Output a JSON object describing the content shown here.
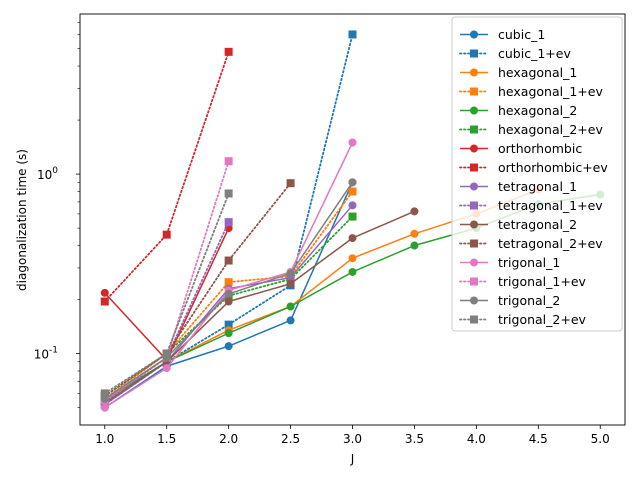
{
  "chart_data": {
    "type": "line",
    "title": "",
    "xlabel": "J",
    "ylabel": "diagonalization time (s)",
    "yscale": "log",
    "xlim": [
      0.8,
      5.2
    ],
    "ylim": [
      0.04,
      7.8
    ],
    "xticks": [
      1.0,
      1.5,
      2.0,
      2.5,
      3.0,
      3.5,
      4.0,
      4.5,
      5.0
    ],
    "xtick_labels": [
      "1.0",
      "1.5",
      "2.0",
      "2.5",
      "3.0",
      "3.5",
      "4.0",
      "4.5",
      "5.0"
    ],
    "yticks_major": [
      0.1,
      1
    ],
    "ytick_labels": [
      "10^-1",
      "10^0"
    ],
    "legend_position": "upper-right",
    "series": [
      {
        "name": "cubic_1",
        "color": "#1f77b4",
        "line": "solid",
        "marker": "circle",
        "x": [
          1.0,
          1.5,
          2.0,
          2.5,
          3.0
        ],
        "y": [
          0.05,
          0.085,
          0.11,
          0.153,
          0.9
        ]
      },
      {
        "name": "cubic_1+ev",
        "color": "#1f77b4",
        "line": "dotted",
        "marker": "square",
        "x": [
          1.0,
          1.5,
          2.0,
          2.5,
          3.0
        ],
        "y": [
          0.052,
          0.09,
          0.145,
          0.24,
          6.0
        ]
      },
      {
        "name": "hexagonal_1",
        "color": "#ff7f0e",
        "line": "solid",
        "marker": "circle",
        "x": [
          1.0,
          1.5,
          2.0,
          2.5,
          3.0,
          3.5,
          4.0,
          4.5
        ],
        "y": [
          0.055,
          0.09,
          0.135,
          0.183,
          0.34,
          0.465,
          0.6,
          0.82
        ]
      },
      {
        "name": "hexagonal_1+ev",
        "color": "#ff7f0e",
        "line": "dotted",
        "marker": "square",
        "x": [
          1.0,
          1.5,
          2.0,
          2.5,
          3.0
        ],
        "y": [
          0.056,
          0.1,
          0.25,
          0.27,
          0.8
        ]
      },
      {
        "name": "hexagonal_2",
        "color": "#2ca02c",
        "line": "solid",
        "marker": "circle",
        "x": [
          1.0,
          1.5,
          2.0,
          2.5,
          3.0,
          3.5,
          4.0,
          4.5,
          5.0
        ],
        "y": [
          0.055,
          0.09,
          0.13,
          0.183,
          0.285,
          0.4,
          0.5,
          0.68,
          0.77
        ]
      },
      {
        "name": "hexagonal_2+ev",
        "color": "#2ca02c",
        "line": "dotted",
        "marker": "square",
        "x": [
          1.0,
          1.5,
          2.0,
          2.5,
          3.0
        ],
        "y": [
          0.058,
          0.1,
          0.21,
          0.26,
          0.58
        ]
      },
      {
        "name": "orthorhombic",
        "color": "#d62728",
        "line": "solid",
        "marker": "circle",
        "x": [
          1.0,
          1.5,
          2.0
        ],
        "y": [
          0.218,
          0.092,
          0.5
        ]
      },
      {
        "name": "orthorhombic+ev",
        "color": "#d62728",
        "line": "dotted",
        "marker": "square",
        "x": [
          1.0,
          1.5,
          2.0
        ],
        "y": [
          0.195,
          0.46,
          4.8
        ]
      },
      {
        "name": "tetragonal_1",
        "color": "#9467bd",
        "line": "solid",
        "marker": "circle",
        "x": [
          1.0,
          1.5,
          2.0,
          2.5,
          3.0
        ],
        "y": [
          0.052,
          0.09,
          0.23,
          0.265,
          0.67
        ]
      },
      {
        "name": "tetragonal_1+ev",
        "color": "#9467bd",
        "line": "dotted",
        "marker": "square",
        "x": [
          1.0,
          1.5,
          2.0
        ],
        "y": [
          0.054,
          0.095,
          0.54
        ]
      },
      {
        "name": "tetragonal_2",
        "color": "#8c564b",
        "line": "solid",
        "marker": "circle",
        "x": [
          1.0,
          1.5,
          2.0,
          2.5,
          3.0,
          3.5
        ],
        "y": [
          0.053,
          0.09,
          0.195,
          0.245,
          0.44,
          0.62
        ]
      },
      {
        "name": "tetragonal_2+ev",
        "color": "#8c564b",
        "line": "dotted",
        "marker": "square",
        "x": [
          1.0,
          1.5,
          2.0,
          2.5
        ],
        "y": [
          0.058,
          0.1,
          0.33,
          0.89
        ]
      },
      {
        "name": "trigonal_1",
        "color": "#e377c2",
        "line": "solid",
        "marker": "circle",
        "x": [
          1.0,
          1.5,
          2.0,
          2.5,
          3.0
        ],
        "y": [
          0.05,
          0.083,
          0.225,
          0.285,
          1.5
        ]
      },
      {
        "name": "trigonal_1+ev",
        "color": "#e377c2",
        "line": "dotted",
        "marker": "square",
        "x": [
          1.0,
          1.5,
          2.0
        ],
        "y": [
          0.055,
          0.095,
          1.18
        ]
      },
      {
        "name": "trigonal_2",
        "color": "#7f7f7f",
        "line": "solid",
        "marker": "circle",
        "x": [
          1.0,
          1.5,
          2.0,
          2.5,
          3.0
        ],
        "y": [
          0.056,
          0.095,
          0.215,
          0.28,
          0.9
        ]
      },
      {
        "name": "trigonal_2+ev",
        "color": "#7f7f7f",
        "line": "dotted",
        "marker": "square",
        "x": [
          1.0,
          1.5,
          2.0
        ],
        "y": [
          0.06,
          0.1,
          0.78
        ]
      }
    ]
  }
}
